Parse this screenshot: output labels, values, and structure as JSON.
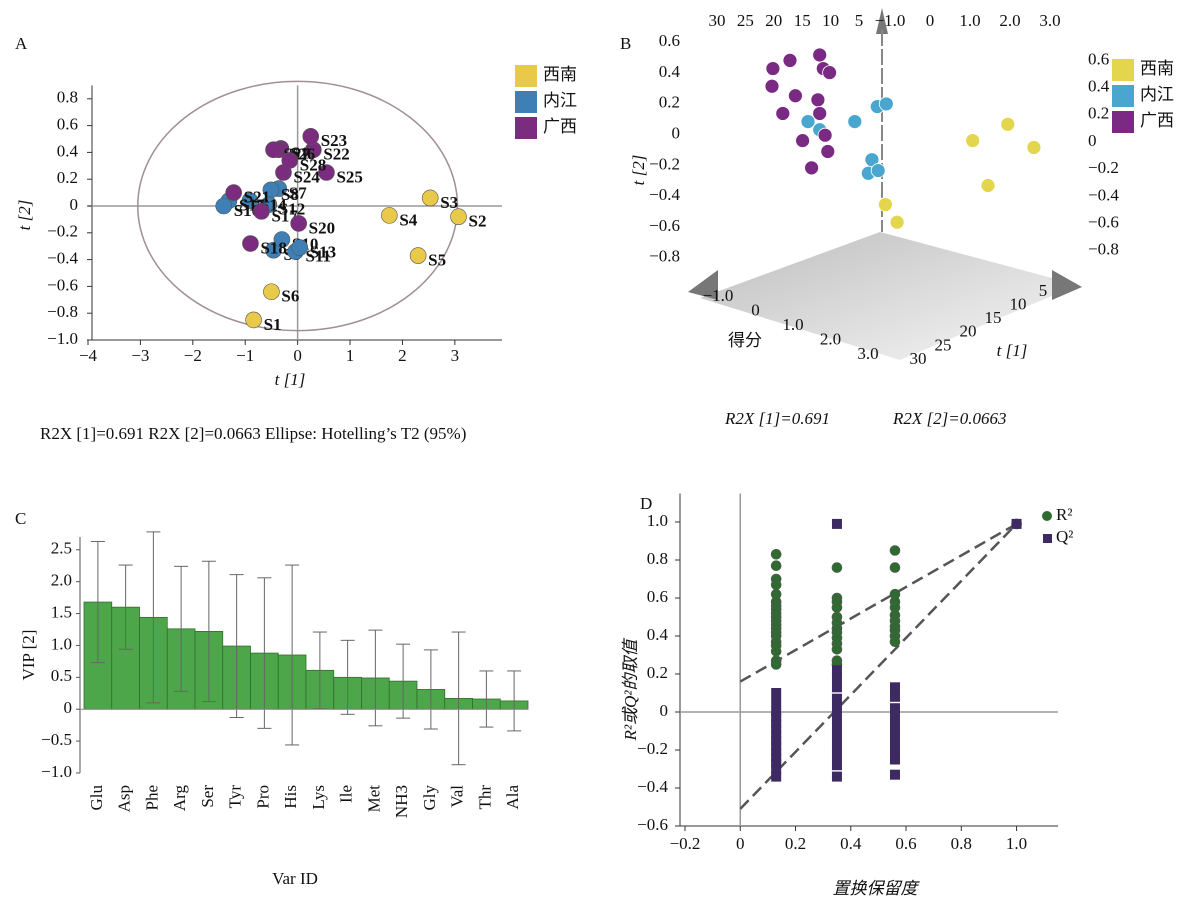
{
  "chart_data": [
    {
      "type": "scatter",
      "panel": "A",
      "xlabel": "t [1]",
      "ylabel": "t [2]",
      "caption": "R2X [1]=0.691  R2X [2]=0.0663   Ellipse: Hotelling’s T2 (95%)",
      "xlim": [
        -4,
        3.9
      ],
      "ylim": [
        -1.0,
        0.9
      ],
      "xticks": [
        {
          "value": -4,
          "label": "−4"
        },
        {
          "value": -3,
          "label": "−3"
        },
        {
          "value": -2,
          "label": "−2"
        },
        {
          "value": -1,
          "label": "−1"
        },
        0,
        1,
        2,
        3
      ],
      "yticks": [
        {
          "value": -1.0,
          "label": "−1.0"
        },
        {
          "value": -0.8,
          "label": "−0.8"
        },
        {
          "value": -0.6,
          "label": "−0.6"
        },
        {
          "value": -0.4,
          "label": "−0.4"
        },
        {
          "value": -0.2,
          "label": "−0.2"
        },
        0,
        0.2,
        0.4,
        0.6,
        0.8
      ],
      "ellipse": {
        "rx": 3.05,
        "ry": 0.93
      },
      "series": [
        {
          "name": "西南",
          "color": "#e8c94a",
          "labels": [
            "S1",
            "S2",
            "S3",
            "S4",
            "S5",
            "S6"
          ],
          "x": [
            -0.84,
            3.07,
            2.53,
            1.75,
            2.3,
            -0.5
          ],
          "y": [
            -0.85,
            -0.08,
            0.06,
            -0.07,
            -0.37,
            -0.64
          ]
        },
        {
          "name": "内江",
          "color": "#3e80b5",
          "labels": [
            "S7",
            "S8",
            "S9",
            "S10",
            "S11",
            "S12",
            "S13",
            "S14",
            "S15",
            "S16"
          ],
          "x": [
            -0.36,
            -0.51,
            -0.46,
            -0.3,
            -0.04,
            -0.55,
            0.04,
            -0.91,
            -1.31,
            -1.41
          ],
          "y": [
            0.13,
            0.12,
            -0.33,
            -0.25,
            -0.34,
            0.01,
            -0.31,
            0.04,
            0.04,
            0.0
          ]
        },
        {
          "name": "广西",
          "color": "#7b2c7e",
          "labels": [
            "S17",
            "S18",
            "S19",
            "S20",
            "S21",
            "S22",
            "S23",
            "S24",
            "S25",
            "S26",
            "S27",
            "S28"
          ],
          "x": [
            -0.69,
            -0.9,
            -0.32,
            0.02,
            -1.22,
            0.3,
            0.25,
            -0.27,
            0.55,
            -0.36,
            -0.46,
            -0.15
          ],
          "y": [
            -0.04,
            -0.28,
            0.43,
            -0.13,
            0.1,
            0.42,
            0.52,
            0.25,
            0.25,
            0.42,
            0.42,
            0.34
          ]
        }
      ]
    },
    {
      "type": "scatter3d",
      "panel": "B",
      "xlabel": "得分",
      "ylabel": "t [2]",
      "zlabel": "t [1]",
      "captions": [
        "R2X [1]=0.691",
        "R2X [2]=0.0663"
      ],
      "xlim": [
        -1.0,
        3.0
      ],
      "ylim": [
        -0.9,
        0.7
      ],
      "zlim": [
        5,
        30
      ],
      "xticks": [
        {
          "value": -1.0,
          "label": "−1.0"
        },
        0,
        {
          "value": 1.0,
          "label": "1.0"
        },
        {
          "value": 2.0,
          "label": "2.0"
        },
        {
          "value": 3.0,
          "label": "3.0"
        }
      ],
      "yticks": [
        {
          "value": -0.8,
          "label": "−0.8"
        },
        {
          "value": -0.6,
          "label": "−0.6"
        },
        {
          "value": -0.4,
          "label": "−0.4"
        },
        {
          "value": -0.2,
          "label": "−0.2"
        },
        0,
        0.2,
        0.4,
        0.6
      ],
      "zticks": [
        5,
        10,
        15,
        20,
        25,
        30
      ],
      "series": [
        {
          "name": "西南",
          "color": "#e3d64c",
          "x": [
            2.92,
            3.21,
            2.53,
            2.7,
            1.56,
            1.69
          ],
          "y": [
            0.13,
            -0.04,
            0.01,
            -0.32,
            -0.46,
            -0.59
          ]
        },
        {
          "name": "内江",
          "color": "#49a6cf",
          "x": [
            0.7,
            0.83,
            1.22,
            1.47,
            1.57,
            1.41,
            1.37,
            1.48
          ],
          "y": [
            0.15,
            0.09,
            0.15,
            0.26,
            0.28,
            -0.13,
            -0.23,
            -0.21
          ]
        },
        {
          "name": "广西",
          "color": "#7a2a82",
          "x": [
            0.31,
            0.5,
            0.83,
            0.87,
            0.94,
            0.3,
            0.56,
            0.81,
            0.42,
            0.83,
            0.64,
            0.92,
            0.74,
            0.89
          ],
          "y": [
            0.54,
            0.6,
            0.64,
            0.54,
            0.51,
            0.41,
            0.34,
            0.31,
            0.21,
            0.21,
            0.01,
            -0.07,
            -0.19,
            0.05
          ]
        }
      ]
    },
    {
      "type": "bar",
      "panel": "C",
      "xlabel": "Var ID",
      "ylabel": "VIP [2]",
      "color": "#4ea64a",
      "categories": [
        "Glu",
        "Asp",
        "Phe",
        "Arg",
        "Ser",
        "Tyr",
        "Pro",
        "His",
        "Lys",
        "Ile",
        "Met",
        "NH3",
        "Gly",
        "Val",
        "Thr",
        "Ala"
      ],
      "values": [
        1.68,
        1.6,
        1.44,
        1.26,
        1.22,
        0.99,
        0.88,
        0.85,
        0.61,
        0.5,
        0.49,
        0.44,
        0.31,
        0.17,
        0.16,
        0.13
      ],
      "errors": [
        0.95,
        0.66,
        1.34,
        0.98,
        1.1,
        1.12,
        1.18,
        1.41,
        0.6,
        0.58,
        0.75,
        0.58,
        0.62,
        1.04,
        0.44,
        0.47
      ],
      "ylim": [
        -1.0,
        2.7
      ],
      "yticks": [
        {
          "value": -1.0,
          "label": "−1.0"
        },
        {
          "value": -0.5,
          "label": "−0.5"
        },
        0,
        0.5,
        {
          "value": 1.0,
          "label": "1.0"
        },
        1.5,
        {
          "value": 2.0,
          "label": "2.0"
        },
        2.5
      ]
    },
    {
      "type": "scatter",
      "panel": "D",
      "xlabel": "置换保留度",
      "ylabel": "R²或Q²的取值",
      "xlim": [
        -0.2,
        1.15
      ],
      "ylim": [
        -0.6,
        1.15
      ],
      "xticks": [
        {
          "value": -0.2,
          "label": "−0.2"
        },
        0,
        0.2,
        0.4,
        0.6,
        0.8,
        {
          "value": 1.0,
          "label": "1.0"
        }
      ],
      "yticks": [
        {
          "value": -0.6,
          "label": "−0.6"
        },
        {
          "value": -0.4,
          "label": "−0.4"
        },
        {
          "value": -0.2,
          "label": "−0.2"
        },
        0,
        0.2,
        0.4,
        0.6,
        0.8,
        {
          "value": 1.0,
          "label": "1.0"
        }
      ],
      "series": [
        {
          "name": "R²",
          "color": "#2e6b30",
          "marker": "circle",
          "x": [
            0.13,
            0.13,
            0.13,
            0.13,
            0.13,
            0.13,
            0.13,
            0.13,
            0.13,
            0.13,
            0.13,
            0.13,
            0.13,
            0.13,
            0.13,
            0.13,
            0.13,
            0.13,
            0.13,
            0.13,
            0.35,
            0.35,
            0.35,
            0.35,
            0.35,
            0.35,
            0.35,
            0.35,
            0.35,
            0.35,
            0.35,
            0.35,
            0.35,
            0.56,
            0.56,
            0.56,
            0.56,
            0.56,
            0.56,
            0.56,
            0.56,
            0.56,
            0.56,
            0.56,
            1.0
          ],
          "y": [
            0.83,
            0.77,
            0.7,
            0.67,
            0.62,
            0.58,
            0.56,
            0.54,
            0.52,
            0.5,
            0.48,
            0.46,
            0.44,
            0.42,
            0.4,
            0.37,
            0.35,
            0.32,
            0.27,
            0.25,
            0.76,
            0.6,
            0.58,
            0.55,
            0.5,
            0.47,
            0.44,
            0.42,
            0.39,
            0.36,
            0.33,
            0.27,
            0.25,
            0.85,
            0.76,
            0.62,
            0.58,
            0.55,
            0.51,
            0.48,
            0.45,
            0.43,
            0.4,
            0.37,
            0.99
          ],
          "fit": {
            "x": [
              0,
              1.0
            ],
            "y": [
              0.16,
              0.99
            ]
          }
        },
        {
          "name": "Q²",
          "color": "#3e2a62",
          "marker": "square",
          "x": [
            0.13,
            0.13,
            0.13,
            0.13,
            0.13,
            0.13,
            0.13,
            0.13,
            0.13,
            0.13,
            0.13,
            0.13,
            0.13,
            0.13,
            0.35,
            0.35,
            0.35,
            0.35,
            0.35,
            0.35,
            0.35,
            0.35,
            0.35,
            0.35,
            0.35,
            0.35,
            0.35,
            0.56,
            0.56,
            0.56,
            0.56,
            0.56,
            0.56,
            0.56,
            0.56,
            0.56,
            0.56,
            1.0
          ],
          "y": [
            0.1,
            0.05,
            0.0,
            -0.03,
            -0.06,
            -0.09,
            -0.12,
            -0.15,
            -0.18,
            -0.21,
            -0.24,
            -0.27,
            -0.3,
            -0.34,
            0.99,
            0.22,
            0.18,
            0.13,
            0.07,
            0.02,
            -0.03,
            -0.08,
            -0.13,
            -0.18,
            -0.23,
            -0.28,
            -0.34,
            0.13,
            0.08,
            0.02,
            -0.03,
            -0.08,
            -0.12,
            -0.17,
            -0.21,
            -0.25,
            -0.33,
            0.99
          ],
          "fit": {
            "x": [
              0,
              1.0
            ],
            "y": [
              -0.51,
              0.99
            ]
          }
        }
      ]
    }
  ]
}
